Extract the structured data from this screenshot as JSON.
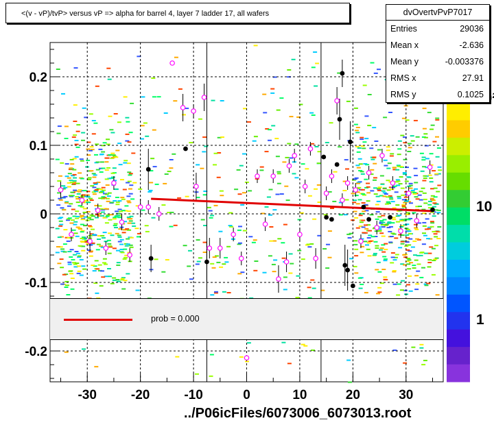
{
  "title": "<(v - vP)/tvP> versus   vP => alpha for barrel 4, layer 7 ladder 17, all wafers",
  "stats": {
    "name": "dvOvertvPvP7017",
    "rows": [
      {
        "key": "Entries",
        "value": "29036"
      },
      {
        "key": "Mean x",
        "value": "-2.636"
      },
      {
        "key": "Mean y",
        "value": "-0.003376"
      },
      {
        "key": "RMS x",
        "value": "27.91"
      },
      {
        "key": "RMS y",
        "value": "0.1025"
      }
    ]
  },
  "legend": {
    "fit_label": "prob = 0.000"
  },
  "xlabel": "../P06icFiles/6073006_6073013.root",
  "colors": {
    "fit": "#e00000",
    "profile_marker": "#ff00ff",
    "profile_black": "#000000"
  },
  "chart_data": {
    "type": "scatter",
    "xlim": [
      -37,
      37
    ],
    "ylim": [
      -0.245,
      0.25
    ],
    "x_ticks": [
      -30,
      -20,
      -10,
      0,
      10,
      20,
      30
    ],
    "y_ticks": [
      -0.2,
      -0.1,
      0,
      0.1,
      0.2
    ],
    "x_tick_labels": [
      "-30",
      "-20",
      "-10",
      "0",
      "10",
      "20",
      "30"
    ],
    "y_tick_labels": [
      "-0.2",
      "-0.1",
      "0",
      "0.1",
      "0.2"
    ],
    "z_scale": "log",
    "z_tick_labels": [
      "1",
      "10",
      "10²"
    ],
    "grid": true,
    "vertical_lines_x": [
      -7.5,
      14
    ],
    "fit_line": {
      "x": [
        -18,
        35
      ],
      "y": [
        0.022,
        0.004
      ]
    },
    "profile_magenta": [
      {
        "x": -35,
        "y": 0.035,
        "e": 0.012
      },
      {
        "x": -33,
        "y": -0.03,
        "e": 0.01
      },
      {
        "x": -31,
        "y": 0.02,
        "e": 0.008
      },
      {
        "x": -29.5,
        "y": -0.04,
        "e": 0.015
      },
      {
        "x": -28,
        "y": 0.005,
        "e": 0.01
      },
      {
        "x": -26.5,
        "y": -0.05,
        "e": 0.01
      },
      {
        "x": -25,
        "y": 0.045,
        "e": 0.01
      },
      {
        "x": -23.5,
        "y": -0.012,
        "e": 0.012
      },
      {
        "x": -22,
        "y": -0.06,
        "e": 0.01
      },
      {
        "x": -20,
        "y": 0.01,
        "e": 0.012
      },
      {
        "x": -18.5,
        "y": 0.01,
        "e": 0.01
      },
      {
        "x": -16.5,
        "y": 0.0,
        "e": 0.01
      },
      {
        "x": -14,
        "y": 0.22,
        "e": 0.0
      },
      {
        "x": -12,
        "y": 0.155,
        "e": 0.02
      },
      {
        "x": -10,
        "y": 0.15,
        "e": 0.01
      },
      {
        "x": -8,
        "y": 0.17,
        "e": 0.02
      },
      {
        "x": -9.5,
        "y": 0.04,
        "e": 0.02
      },
      {
        "x": -7,
        "y": -0.05,
        "e": 0.015
      },
      {
        "x": -5,
        "y": -0.05,
        "e": 0.015
      },
      {
        "x": -2.5,
        "y": -0.03,
        "e": 0.01
      },
      {
        "x": -1,
        "y": -0.065,
        "e": 0.01
      },
      {
        "x": 0,
        "y": -0.21,
        "e": 0.0
      },
      {
        "x": 2,
        "y": 0.055,
        "e": 0.01
      },
      {
        "x": 3.5,
        "y": -0.015,
        "e": 0.01
      },
      {
        "x": 5,
        "y": 0.055,
        "e": 0.01
      },
      {
        "x": 6,
        "y": -0.095,
        "e": 0.02
      },
      {
        "x": 7.5,
        "y": -0.07,
        "e": 0.015
      },
      {
        "x": 8,
        "y": 0.07,
        "e": 0.01
      },
      {
        "x": 9,
        "y": 0.085,
        "e": 0.01
      },
      {
        "x": 10,
        "y": -0.03,
        "e": 0.01
      },
      {
        "x": 11,
        "y": 0.04,
        "e": 0.01
      },
      {
        "x": 12,
        "y": 0.095,
        "e": 0.01
      },
      {
        "x": 13,
        "y": -0.065,
        "e": 0.015
      },
      {
        "x": 15,
        "y": 0.03,
        "e": 0.01
      },
      {
        "x": 16,
        "y": 0.055,
        "e": 0.01
      },
      {
        "x": 17,
        "y": 0.165,
        "e": 0.02
      },
      {
        "x": 18,
        "y": 0.02,
        "e": 0.01
      },
      {
        "x": 19,
        "y": 0.045,
        "e": 0.01
      },
      {
        "x": 20.5,
        "y": 0.035,
        "e": 0.01
      },
      {
        "x": 21.5,
        "y": -0.04,
        "e": 0.01
      },
      {
        "x": 23,
        "y": 0.06,
        "e": 0.01
      },
      {
        "x": 24.5,
        "y": -0.02,
        "e": 0.01
      },
      {
        "x": 25.5,
        "y": 0.085,
        "e": 0.01
      },
      {
        "x": 27.5,
        "y": 0.045,
        "e": 0.01
      },
      {
        "x": 29,
        "y": -0.025,
        "e": 0.01
      },
      {
        "x": 30.5,
        "y": 0.03,
        "e": 0.01
      },
      {
        "x": 32,
        "y": -0.01,
        "e": 0.01
      },
      {
        "x": 34.5,
        "y": 0.068,
        "e": 0.01
      }
    ],
    "profile_black": [
      {
        "x": -18.5,
        "y": 0.065,
        "e": 0.03
      },
      {
        "x": -18,
        "y": -0.065,
        "e": 0.02
      },
      {
        "x": -11.5,
        "y": 0.095,
        "e": 0.0
      },
      {
        "x": -7.5,
        "y": -0.07,
        "e": 0.03
      },
      {
        "x": 14.5,
        "y": 0.083,
        "e": 0.0
      },
      {
        "x": 15,
        "y": -0.005,
        "e": 0.0
      },
      {
        "x": 16,
        "y": -0.008,
        "e": 0.0
      },
      {
        "x": 17,
        "y": 0.072,
        "e": 0.0
      },
      {
        "x": 17.5,
        "y": 0.138,
        "e": 0.03
      },
      {
        "x": 18,
        "y": 0.205,
        "e": 0.02
      },
      {
        "x": 18.5,
        "y": -0.075,
        "e": 0.03
      },
      {
        "x": 19,
        "y": -0.082,
        "e": 0.03
      },
      {
        "x": 19.5,
        "y": 0.105,
        "e": 0.03
      },
      {
        "x": 20,
        "y": -0.105,
        "e": 0.0
      },
      {
        "x": 22,
        "y": 0.01,
        "e": 0.0
      },
      {
        "x": 23,
        "y": -0.008,
        "e": 0.0
      },
      {
        "x": 27,
        "y": -0.005,
        "e": 0.0
      },
      {
        "x": 35,
        "y": 0.006,
        "e": 0.0
      }
    ]
  }
}
